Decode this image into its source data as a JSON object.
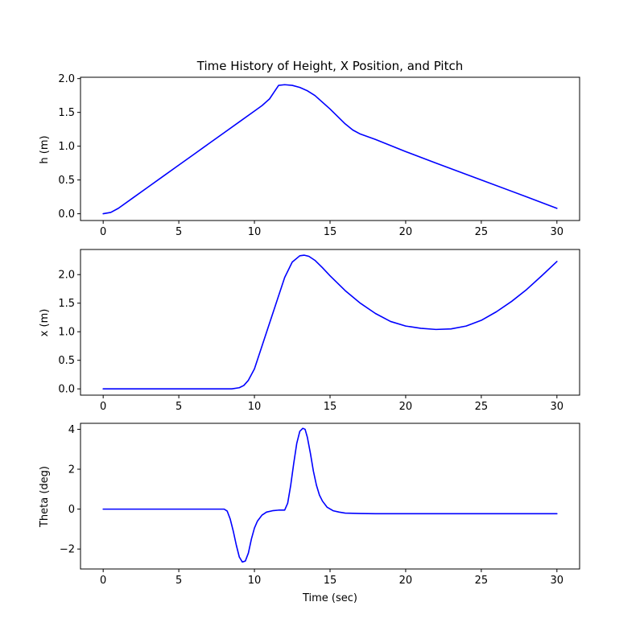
{
  "chart_data": [
    {
      "type": "line",
      "title": "Time History of Height, X Position, and Pitch",
      "xlabel": "",
      "ylabel": "h (m)",
      "xlim": [
        -1.5,
        31.5
      ],
      "ylim": [
        -0.1,
        2.02
      ],
      "xticks": [
        0,
        5,
        10,
        15,
        20,
        25,
        30
      ],
      "yticks": [
        0.0,
        0.5,
        1.0,
        1.5,
        2.0
      ],
      "ytick_labels": [
        "0.0",
        "0.5",
        "1.0",
        "1.5",
        "2.0"
      ],
      "line_color": "#0000ff",
      "series": [
        {
          "x": [
            0,
            0.5,
            1,
            2,
            3,
            4,
            5,
            6,
            7,
            8,
            9,
            10,
            10.5,
            11,
            11.3,
            11.6,
            12,
            12.5,
            13,
            13.5,
            14,
            15,
            16,
            16.5,
            17,
            18,
            20,
            22,
            25,
            28,
            30
          ],
          "y": [
            0.0,
            0.02,
            0.08,
            0.24,
            0.4,
            0.56,
            0.72,
            0.88,
            1.04,
            1.2,
            1.36,
            1.52,
            1.6,
            1.7,
            1.8,
            1.9,
            1.91,
            1.9,
            1.87,
            1.82,
            1.75,
            1.55,
            1.33,
            1.24,
            1.18,
            1.1,
            0.92,
            0.75,
            0.5,
            0.25,
            0.08
          ]
        }
      ]
    },
    {
      "type": "line",
      "title": "",
      "xlabel": "",
      "ylabel": "x (m)",
      "xlim": [
        -1.5,
        31.5
      ],
      "ylim": [
        -0.11,
        2.44
      ],
      "xticks": [
        0,
        5,
        10,
        15,
        20,
        25,
        30
      ],
      "yticks": [
        0.0,
        0.5,
        1.0,
        1.5,
        2.0
      ],
      "ytick_labels": [
        "0.0",
        "0.5",
        "1.0",
        "1.5",
        "2.0"
      ],
      "line_color": "#0000ff",
      "series": [
        {
          "x": [
            0,
            2,
            4,
            6,
            8,
            8.5,
            9,
            9.3,
            9.6,
            10,
            10.5,
            11,
            11.5,
            12,
            12.5,
            13,
            13.3,
            13.6,
            14,
            14.5,
            15,
            16,
            17,
            18,
            19,
            20,
            21,
            22,
            23,
            24,
            25,
            26,
            27,
            28,
            29,
            30
          ],
          "y": [
            0.0,
            0.0,
            0.0,
            0.0,
            0.0,
            0.0,
            0.02,
            0.06,
            0.15,
            0.35,
            0.75,
            1.15,
            1.55,
            1.95,
            2.22,
            2.33,
            2.34,
            2.32,
            2.25,
            2.12,
            1.98,
            1.72,
            1.5,
            1.32,
            1.18,
            1.1,
            1.06,
            1.04,
            1.05,
            1.1,
            1.2,
            1.35,
            1.53,
            1.74,
            1.98,
            2.23
          ]
        }
      ]
    },
    {
      "type": "line",
      "title": "",
      "xlabel": "Time (sec)",
      "ylabel": "Theta (deg)",
      "xlim": [
        -1.5,
        31.5
      ],
      "ylim": [
        -3.0,
        4.3
      ],
      "xticks": [
        0,
        5,
        10,
        15,
        20,
        25,
        30
      ],
      "yticks": [
        -2,
        0,
        2,
        4
      ],
      "ytick_labels": [
        "−2",
        "0",
        "2",
        "4"
      ],
      "line_color": "#0000ff",
      "series": [
        {
          "x": [
            0,
            2,
            4,
            6,
            8,
            8.2,
            8.4,
            8.6,
            8.8,
            9.0,
            9.2,
            9.4,
            9.6,
            9.8,
            10.0,
            10.2,
            10.5,
            10.8,
            11.2,
            11.6,
            12.0,
            12.2,
            12.4,
            12.6,
            12.8,
            13.0,
            13.2,
            13.35,
            13.5,
            13.7,
            13.9,
            14.1,
            14.3,
            14.5,
            14.8,
            15.2,
            15.6,
            16,
            17,
            18,
            20,
            25,
            30
          ],
          "y": [
            0.0,
            0.0,
            0.0,
            0.0,
            0.0,
            -0.1,
            -0.5,
            -1.1,
            -1.8,
            -2.4,
            -2.65,
            -2.6,
            -2.2,
            -1.5,
            -0.95,
            -0.6,
            -0.3,
            -0.15,
            -0.08,
            -0.05,
            -0.05,
            0.3,
            1.2,
            2.3,
            3.3,
            3.9,
            4.05,
            4.0,
            3.6,
            2.8,
            1.9,
            1.2,
            0.7,
            0.4,
            0.1,
            -0.08,
            -0.15,
            -0.2,
            -0.22,
            -0.23,
            -0.23,
            -0.23,
            -0.23
          ]
        }
      ]
    }
  ]
}
